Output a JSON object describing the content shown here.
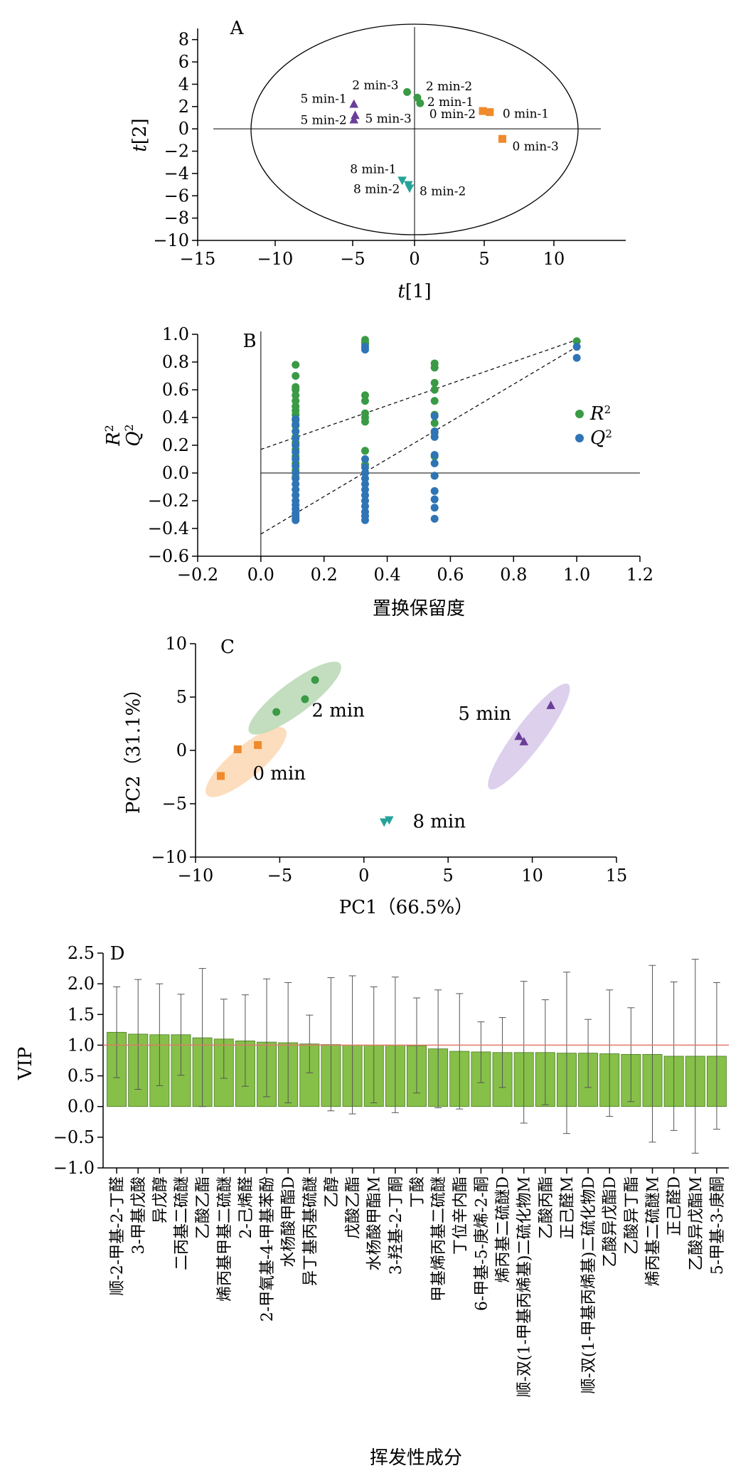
{
  "colors": {
    "orange": "#f08a2c",
    "green": "#3a9a45",
    "purple": "#6a3d98",
    "teal": "#25a39a",
    "blue": "#2f74b5",
    "bar": "#86c048",
    "bar_stroke": "#4a7a22",
    "refline": "#e07a6a",
    "orange_fill": "#fbd7b3",
    "green_fill": "#b9d8b4",
    "purple_fill": "#d7c8ea"
  },
  "chart_data": [
    {
      "panel": "A",
      "type": "scatter",
      "xlabel": "t[1]",
      "ylabel": "t[2]",
      "x_ticks": [
        "−15",
        "−10",
        "−5",
        "0",
        "5",
        "10"
      ],
      "y_ticks": [
        "−10",
        "−8",
        "−6",
        "−4",
        "−2",
        "0",
        "2",
        "4",
        "6",
        "8"
      ],
      "y_range": [
        -10,
        9
      ],
      "points": [
        {
          "label": "0 min-1",
          "group": "0min",
          "x": 5.4,
          "y": 1.5
        },
        {
          "label": "0 min-2",
          "group": "0min",
          "x": 4.9,
          "y": 1.6
        },
        {
          "label": "0 min-3",
          "group": "0min",
          "x": 6.3,
          "y": -0.9
        },
        {
          "label": "2 min-1",
          "group": "2min",
          "x": 0.4,
          "y": 2.3
        },
        {
          "label": "2 min-2",
          "group": "2min",
          "x": 0.2,
          "y": 2.8
        },
        {
          "label": "2 min-3",
          "group": "2min",
          "x": -0.6,
          "y": 3.3
        },
        {
          "label": "5 min-1",
          "group": "5min",
          "x": -4.9,
          "y": 2.2
        },
        {
          "label": "5 min-2",
          "group": "5min",
          "x": -4.9,
          "y": 0.8
        },
        {
          "label": "5 min-3",
          "group": "5min",
          "x": -4.8,
          "y": 1.2
        },
        {
          "label": "8 min-1",
          "group": "8min",
          "x": -1.0,
          "y": -4.6
        },
        {
          "label": "8 min-2",
          "group": "8min",
          "x": -0.5,
          "y": -5.0
        },
        {
          "label": "8 min-2",
          "group": "8min",
          "x": -0.4,
          "y": -5.3
        }
      ]
    },
    {
      "panel": "B",
      "type": "scatter",
      "xlabel": "置换保留度",
      "ylabel_r": "R",
      "ylabel_q": "Q",
      "sup": "2",
      "legend": [
        "R",
        "Q"
      ],
      "legend_position": "right",
      "x_ticks": [
        "−0.2",
        "0.0",
        "0.2",
        "0.4",
        "0.6",
        "0.8",
        "1.0",
        "1.2"
      ],
      "y_ticks": [
        "−0.6",
        "−0.4",
        "−0.2",
        "0.0",
        "0.2",
        "0.4",
        "0.6",
        "0.8",
        "1.0"
      ],
      "xlim": [
        -0.2,
        1.2
      ],
      "ylim": [
        -0.6,
        1.0
      ],
      "series": [
        {
          "name": "R²",
          "x": [
            0.11,
            0.11,
            0.11,
            0.11,
            0.11,
            0.11,
            0.11,
            0.11,
            0.11,
            0.11,
            0.11,
            0.11,
            0.11,
            0.11,
            0.11,
            0.11,
            0.11,
            0.11,
            0.11,
            0.33,
            0.33,
            0.33,
            0.33,
            0.33,
            0.33,
            0.33,
            0.33,
            0.33,
            0.33,
            0.33,
            0.55,
            0.55,
            0.55,
            0.55,
            0.55,
            0.55,
            0.55,
            0.55,
            0.55,
            0.55,
            1.0
          ],
          "y": [
            0.78,
            0.7,
            0.62,
            0.6,
            0.56,
            0.52,
            0.48,
            0.45,
            0.42,
            0.38,
            0.34,
            0.3,
            0.26,
            0.22,
            0.17,
            0.12,
            0.07,
            0.02,
            -0.03,
            0.96,
            0.94,
            0.93,
            0.56,
            0.52,
            0.43,
            0.4,
            0.37,
            0.16,
            0.06,
            0.0,
            0.79,
            0.76,
            0.65,
            0.6,
            0.52,
            0.42,
            0.36,
            0.29,
            0.12,
            -0.02,
            0.95
          ]
        },
        {
          "name": "Q²",
          "x": [
            0.11,
            0.11,
            0.11,
            0.11,
            0.11,
            0.11,
            0.11,
            0.11,
            0.11,
            0.11,
            0.11,
            0.11,
            0.11,
            0.11,
            0.11,
            0.11,
            0.11,
            0.11,
            0.11,
            0.11,
            0.33,
            0.33,
            0.33,
            0.33,
            0.33,
            0.33,
            0.33,
            0.33,
            0.33,
            0.33,
            0.33,
            0.33,
            0.33,
            0.33,
            0.55,
            0.55,
            0.55,
            0.55,
            0.55,
            0.55,
            0.55,
            0.55,
            0.55,
            0.55,
            1.0,
            1.0
          ],
          "y": [
            0.39,
            0.35,
            0.3,
            0.25,
            0.2,
            0.15,
            0.1,
            0.05,
            0.0,
            -0.04,
            -0.08,
            -0.12,
            -0.16,
            -0.2,
            -0.23,
            -0.26,
            -0.29,
            -0.31,
            -0.33,
            -0.34,
            0.91,
            0.89,
            0.1,
            0.04,
            0.0,
            -0.04,
            -0.08,
            -0.12,
            -0.16,
            -0.2,
            -0.24,
            -0.28,
            -0.31,
            -0.34,
            0.41,
            0.3,
            0.26,
            0.13,
            0.07,
            -0.02,
            -0.13,
            -0.19,
            -0.25,
            -0.33,
            0.91,
            0.83
          ]
        }
      ],
      "trend_r2": [
        [
          0.0,
          0.17
        ],
        [
          1.0,
          0.96
        ]
      ],
      "trend_q2": [
        [
          0.0,
          -0.44
        ],
        [
          1.0,
          0.91
        ]
      ]
    },
    {
      "panel": "C",
      "type": "scatter",
      "xlabel": "PC1（66.5%）",
      "ylabel": "PC2（31.1%）",
      "x_ticks": [
        "−10",
        "−5",
        "0",
        "5",
        "10",
        "15"
      ],
      "y_ticks": [
        "−10",
        "−5",
        "0",
        "5",
        "10"
      ],
      "xlim": [
        -10,
        15
      ],
      "ylim": [
        -10,
        10
      ],
      "groups": [
        {
          "label": "0 min",
          "x": [
            -8.5,
            -7.5,
            -6.3
          ],
          "y": [
            -2.4,
            0.1,
            0.5
          ]
        },
        {
          "label": "2 min",
          "x": [
            -5.2,
            -3.5,
            -2.9
          ],
          "y": [
            3.6,
            4.8,
            6.6
          ]
        },
        {
          "label": "5 min",
          "x": [
            9.2,
            9.5,
            11.1
          ],
          "y": [
            1.3,
            0.8,
            4.2
          ]
        },
        {
          "label": "8 min",
          "x": [
            1.2,
            1.5
          ],
          "y": [
            -6.7,
            -6.5
          ]
        }
      ]
    },
    {
      "panel": "D",
      "type": "bar",
      "ylabel": "VIP",
      "xlabel": "挥发性成分",
      "y_ticks": [
        "−1.0",
        "−0.5",
        "0.0",
        "0.5",
        "1.0",
        "1.5",
        "2.0",
        "2.5"
      ],
      "ylim": [
        -1.0,
        2.5
      ],
      "reference_line": 1.0,
      "categories": [
        "顺-2-甲基-2-丁醛",
        "3-甲基戊酸",
        "异戊醇",
        "二丙基二硫醚",
        "乙酸乙酯",
        "烯丙基甲基二硫醚",
        "2-己烯醛",
        "2-甲氧基-4-甲基苯酚",
        "水杨酸甲酯D",
        "异丁基丙基硫醚",
        "乙醇",
        "戊酸乙酯",
        "水杨酸甲酯M",
        "3-羟基-2-丁酮",
        "丁酸",
        "甲基烯丙基二硫醚",
        "丁位辛内酯",
        "6-甲基-5-庚烯-2-酮",
        "烯丙基二硫醚D",
        "顺-双(1-甲基丙烯基)二硫化物M",
        "乙酸丙酯",
        "正己醛M",
        "顺-双(1-甲基丙烯基)二硫化物D",
        "乙酸异戊酯D",
        "乙酸异丁酯",
        "烯丙基二硫醚M",
        "正己醛D",
        "乙酸异戊酯M",
        "5-甲基-3-庚酮"
      ],
      "values": [
        1.21,
        1.18,
        1.17,
        1.17,
        1.12,
        1.1,
        1.07,
        1.05,
        1.04,
        1.02,
        1.01,
        1.0,
        1.0,
        1.0,
        0.99,
        0.94,
        0.9,
        0.89,
        0.88,
        0.88,
        0.88,
        0.87,
        0.87,
        0.86,
        0.85,
        0.85,
        0.82,
        0.82,
        0.82
      ],
      "error_low": [
        0.47,
        0.28,
        0.34,
        0.51,
        0.0,
        0.46,
        0.33,
        0.16,
        0.06,
        0.55,
        -0.07,
        -0.12,
        0.06,
        -0.1,
        0.22,
        -0.02,
        -0.04,
        0.39,
        0.31,
        -0.27,
        0.03,
        -0.44,
        0.31,
        -0.16,
        0.08,
        -0.58,
        -0.39,
        -0.76,
        -0.37
      ],
      "error_high": [
        1.95,
        2.07,
        2.0,
        1.83,
        2.25,
        1.75,
        1.82,
        2.08,
        2.02,
        1.49,
        2.1,
        2.13,
        1.95,
        2.11,
        1.77,
        1.9,
        1.84,
        1.38,
        1.45,
        2.04,
        1.74,
        2.19,
        1.42,
        1.9,
        1.61,
        2.3,
        2.03,
        2.4,
        2.02
      ]
    }
  ]
}
